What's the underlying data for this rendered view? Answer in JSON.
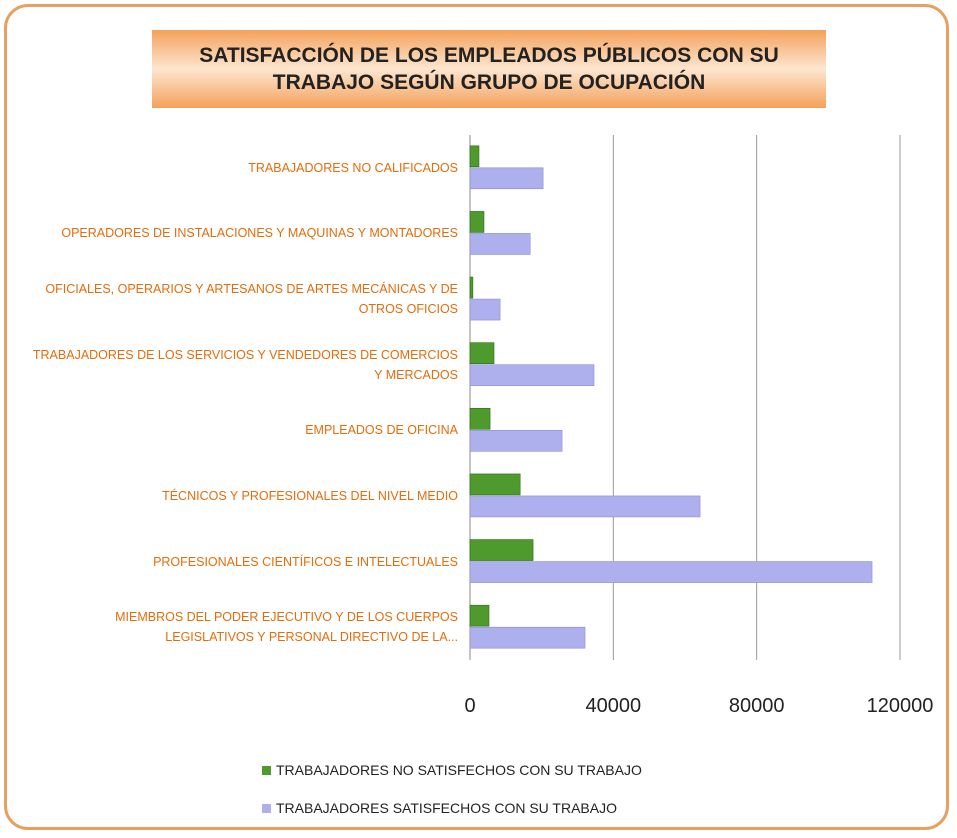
{
  "chart_data": {
    "type": "barh",
    "title": "SATISFACCIÓN DE LOS EMPLEADOS PÚBLICOS CON SU TRABAJO SEGÚN GRUPO DE OCUPACIÓN",
    "categories": [
      "TRABAJADORES NO CALIFICADOS",
      "OPERADORES DE INSTALACIONES Y MAQUINAS Y MONTADORES",
      "OFICIALES, OPERARIOS Y ARTESANOS DE ARTES MECÁNICAS Y DE OTROS OFICIOS",
      "TRABAJADORES DE LOS SERVICIOS Y VENDEDORES DE COMERCIOS Y MERCADOS",
      "EMPLEADOS DE OFICINA",
      "TÉCNICOS Y PROFESIONALES DEL NIVEL MEDIO",
      "PROFESIONALES CIENTÍFICOS E INTELECTUALES",
      "MIEMBROS DEL PODER EJECUTIVO Y DE LOS CUERPOS LEGISLATIVOS Y PERSONAL DIRECTIVO DE LA..."
    ],
    "series": [
      {
        "name": "TRABAJADORES  NO SATISFECHOS CON SU TRABAJO",
        "color": "#4e9a2c",
        "values": [
          2500,
          3900,
          800,
          6700,
          5600,
          14000,
          17600,
          5300
        ]
      },
      {
        "name": "TRABAJADORES SATISFECHOS CON SU TRABAJO",
        "color": "#aeb0ee",
        "values": [
          20400,
          16800,
          8400,
          34600,
          25700,
          64200,
          112200,
          32100
        ]
      }
    ],
    "xlim": [
      0,
      120000
    ],
    "xticks": [
      0,
      40000,
      80000,
      120000
    ],
    "grid": true
  }
}
